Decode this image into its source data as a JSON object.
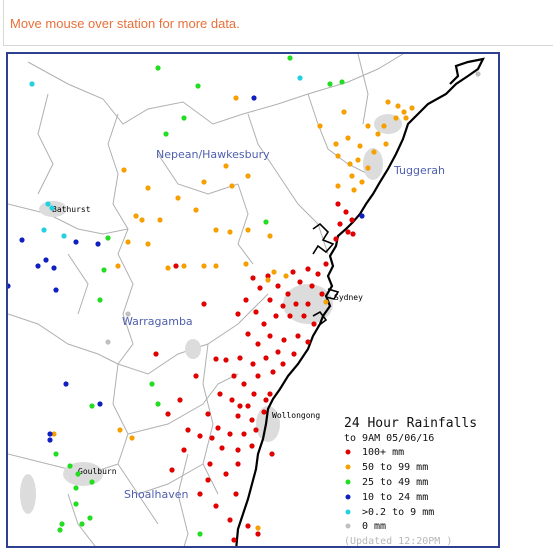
{
  "notice": {
    "text": "Move mouse over station for more data."
  },
  "map": {
    "regions": [
      "Nepean/Hawkesbury",
      "Tuggerah",
      "Warragamba",
      "Shoalhaven"
    ],
    "towns": [
      "Bathurst",
      "Sydney",
      "Wollongong",
      "Goulburn"
    ]
  },
  "legend": {
    "title": "24 Hour Rainfalls",
    "subtitle": "to 9AM 05/06/16",
    "items": [
      {
        "label": "100+ mm",
        "color": "#e00000"
      },
      {
        "label": "50  to 99 mm",
        "color": "#f5a000"
      },
      {
        "label": "25  to 49 mm",
        "color": "#22dd22"
      },
      {
        "label": "10  to 24 mm",
        "color": "#1020c0"
      },
      {
        "label": ">0.2 to 9 mm",
        "color": "#22d0e0"
      },
      {
        "label": "0 mm",
        "color": "#c0c0c0"
      }
    ],
    "updated": "(Updated 12:20PM  )"
  },
  "colors": {
    "frame": "#2d3f8f",
    "coast": "#000000",
    "boundary": "#b0b0b0",
    "notice": "#e8703a"
  }
}
